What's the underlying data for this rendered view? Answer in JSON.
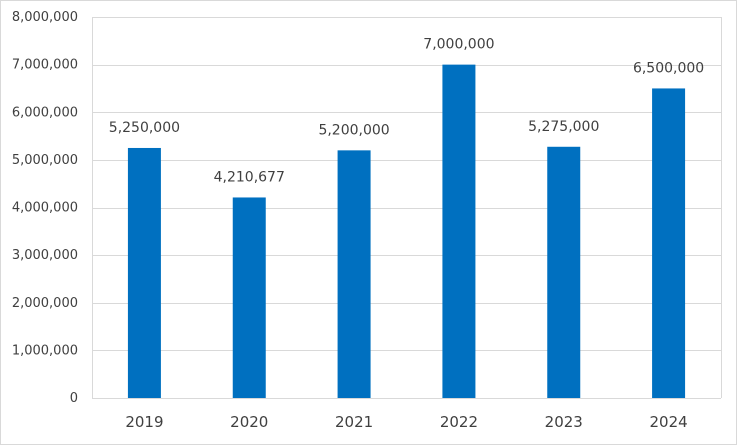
{
  "chart_data": {
    "type": "bar",
    "categories": [
      "2019",
      "2020",
      "2021",
      "2022",
      "2023",
      "2024"
    ],
    "values": [
      5250000,
      4210677,
      5200000,
      7000000,
      5275000,
      6500000
    ],
    "data_labels": [
      "5,250,000",
      "4,210,677",
      "5,200,000",
      "7,000,000",
      "5,275,000",
      "6,500,000"
    ],
    "y_ticks": [
      0,
      1000000,
      2000000,
      3000000,
      4000000,
      5000000,
      6000000,
      7000000,
      8000000
    ],
    "y_tick_labels": [
      "0",
      "1,000,000",
      "2,000,000",
      "3,000,000",
      "4,000,000",
      "5,000,000",
      "6,000,000",
      "7,000,000",
      "8,000,000"
    ],
    "ylim": [
      0,
      8000000
    ],
    "grid": true,
    "legend": "none",
    "bar_color": "#0070c0",
    "grid_color": "#d9d9d9"
  }
}
